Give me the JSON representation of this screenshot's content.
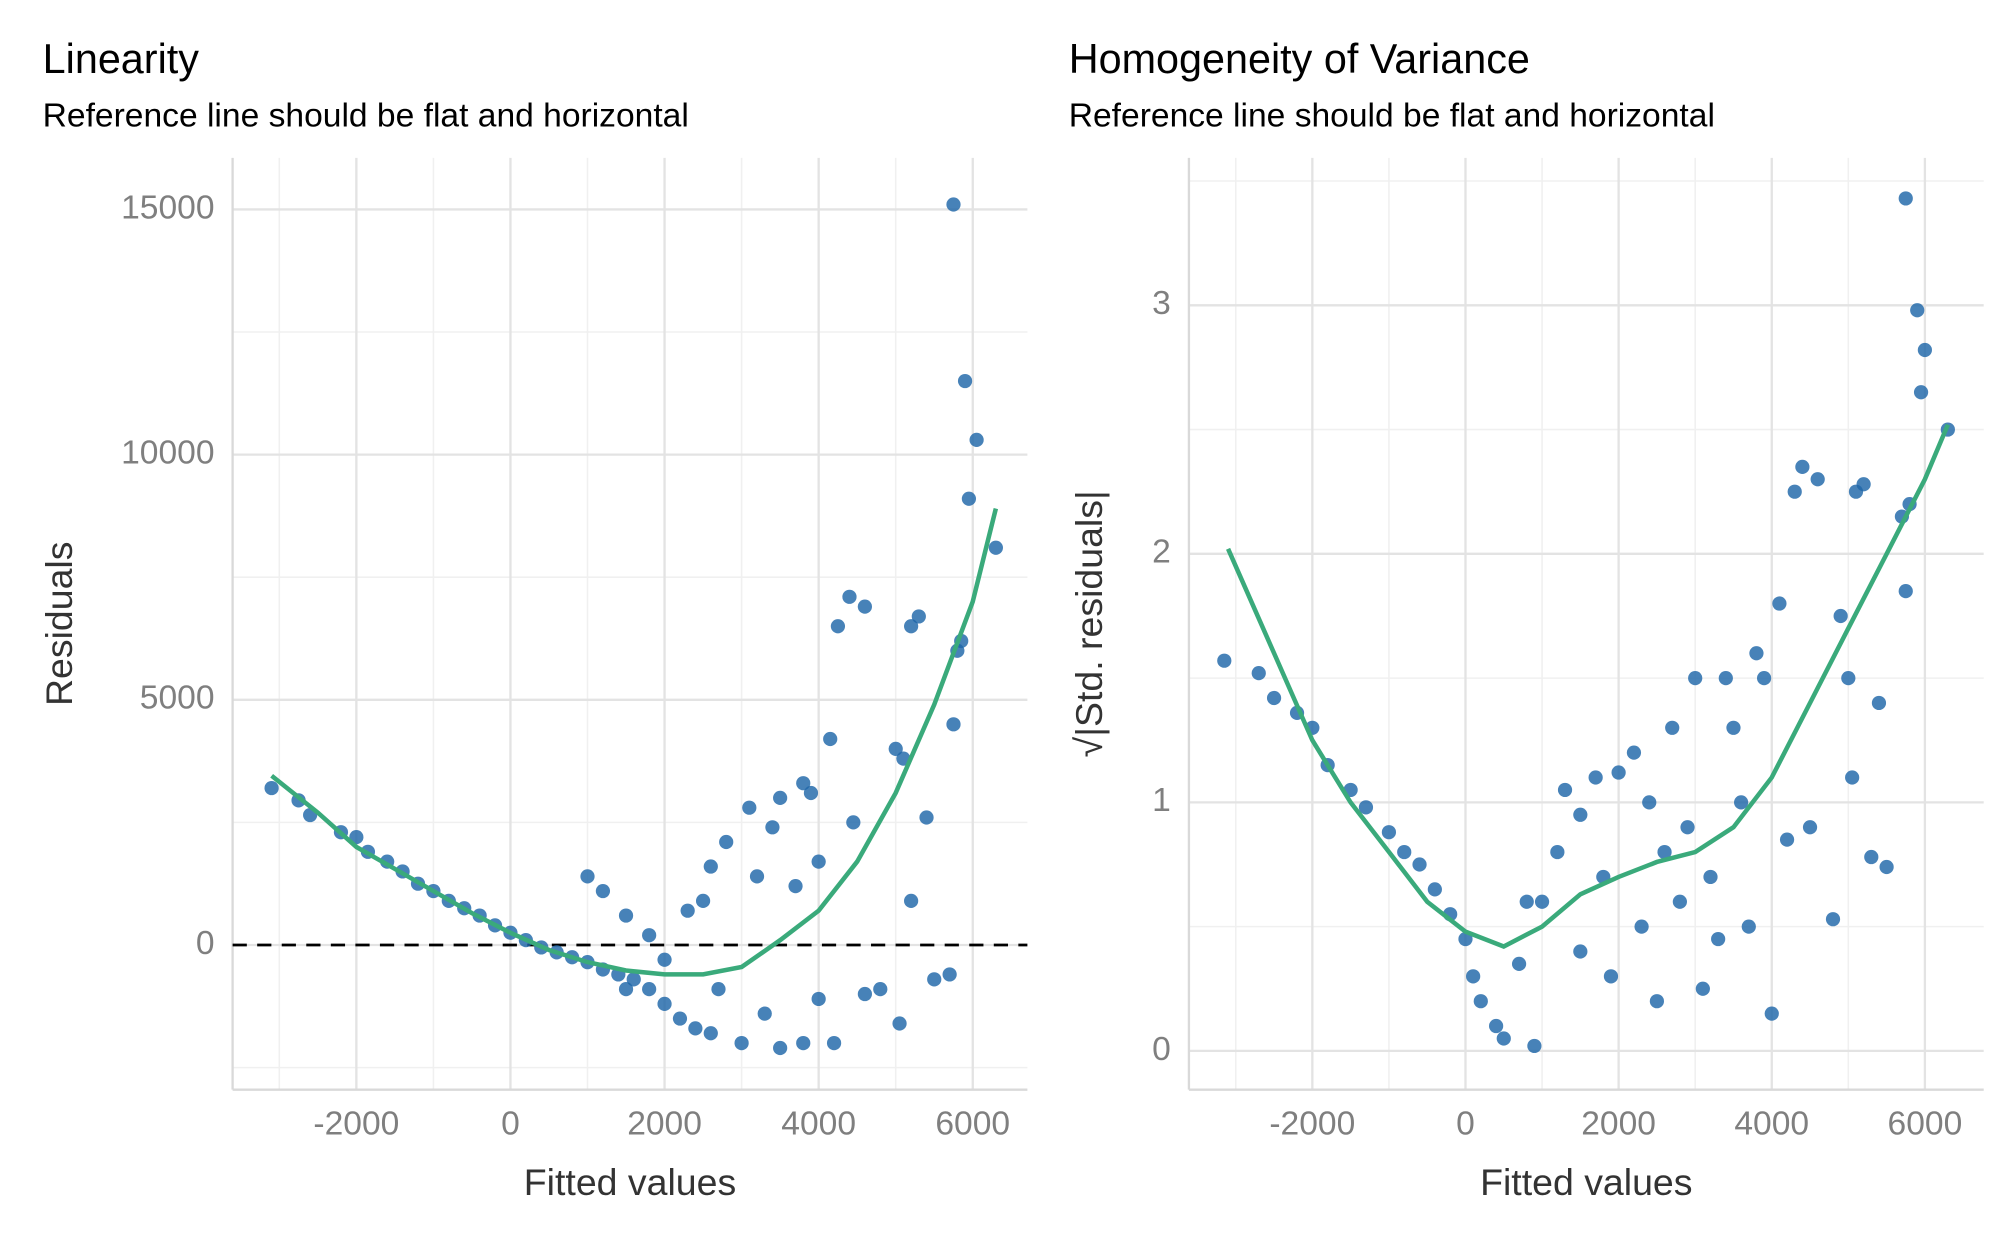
{
  "chart_data": [
    {
      "type": "scatter",
      "title": "Linearity",
      "subtitle": "Reference line should be flat and horizontal",
      "x_label": "Fitted values",
      "y_label": "Residuals",
      "xlim": [
        -3606,
        6709
      ],
      "ylim": [
        -2950,
        16050
      ],
      "xticks": [
        -2000,
        0,
        2000,
        4000,
        6000
      ],
      "yticks": [
        0,
        5000,
        10000,
        15000
      ],
      "minor_xticks": [
        -3000,
        -1000,
        1000,
        3000,
        5000
      ],
      "minor_yticks": [
        -2500,
        2500,
        7500,
        12500
      ],
      "grid": true,
      "hline": 0,
      "points": {
        "color": "#1f66a8",
        "x": [
          -3100,
          -2750,
          -2600,
          -2200,
          -2000,
          -1850,
          -1600,
          -1400,
          -1200,
          -1000,
          -800,
          -600,
          -400,
          -200,
          0,
          200,
          400,
          600,
          800,
          1000,
          1200,
          1400,
          1600,
          1800,
          2000,
          2200,
          2400,
          2600,
          3000,
          3500,
          3800,
          4200,
          1000,
          1200,
          1500,
          1800,
          2000,
          2300,
          2500,
          2600,
          2800,
          3100,
          3200,
          3400,
          3500,
          3700,
          3800,
          3900,
          4000,
          4150,
          4250,
          4400,
          4450,
          4600,
          4800,
          5000,
          5050,
          5100,
          5200,
          5300,
          5400,
          5500,
          5700,
          5750,
          5800,
          5850,
          5750,
          5900,
          5950,
          6050,
          6300,
          4600,
          5200,
          2700,
          1500,
          3300,
          4000
        ],
        "y": [
          3200,
          2950,
          2650,
          2300,
          2200,
          1900,
          1700,
          1500,
          1250,
          1100,
          900,
          750,
          600,
          400,
          250,
          100,
          -50,
          -150,
          -250,
          -350,
          -500,
          -600,
          -700,
          -900,
          -1200,
          -1500,
          -1700,
          -1800,
          -2000,
          -2100,
          -2000,
          -2000,
          1400,
          1100,
          600,
          200,
          -300,
          700,
          900,
          1600,
          2100,
          2800,
          1400,
          2400,
          3000,
          1200,
          3300,
          3100,
          1700,
          4200,
          6500,
          7100,
          2500,
          6900,
          -900,
          4000,
          -1600,
          3800,
          6500,
          6700,
          2600,
          -700,
          -600,
          4500,
          6000,
          6200,
          15100,
          11500,
          9100,
          10300,
          8100,
          -1000,
          900,
          -900,
          -900,
          -1400,
          -1100
        ]
      },
      "smooth": {
        "color": "#3aaa7b",
        "x": [
          -3100,
          -2500,
          -2000,
          -1500,
          -1000,
          -500,
          0,
          500,
          1000,
          1500,
          2000,
          2500,
          3000,
          3500,
          4000,
          4500,
          5000,
          5500,
          6000,
          6300
        ],
        "y": [
          3450,
          2700,
          2000,
          1550,
          1100,
          650,
          250,
          -100,
          -350,
          -520,
          -600,
          -600,
          -450,
          100,
          700,
          1700,
          3100,
          4900,
          7000,
          8900
        ]
      }
    },
    {
      "type": "scatter",
      "title": "Homogeneity of Variance",
      "subtitle": "Reference line should be flat and horizontal",
      "x_label": "Fitted values",
      "y_label": "√|Std. residuals|",
      "xlim": [
        -3612,
        6768
      ],
      "ylim": [
        -0.156,
        3.593
      ],
      "xticks": [
        -2000,
        0,
        2000,
        4000,
        6000
      ],
      "yticks": [
        0,
        1,
        2,
        3
      ],
      "minor_xticks": [
        -3000,
        -1000,
        1000,
        3000,
        5000
      ],
      "minor_yticks": [
        0.5,
        1.5,
        2.5,
        3.5
      ],
      "grid": true,
      "points": {
        "color": "#1f66a8",
        "x": [
          -3150,
          -2700,
          -2500,
          -2200,
          -2000,
          -1800,
          -1500,
          -1300,
          -1000,
          -800,
          -600,
          -400,
          -200,
          0,
          100,
          200,
          400,
          500,
          900,
          700,
          1000,
          1200,
          1300,
          1500,
          1700,
          1800,
          2000,
          2200,
          2300,
          2400,
          2500,
          2700,
          2900,
          3000,
          3100,
          3300,
          3400,
          3500,
          3700,
          3800,
          3900,
          4000,
          4100,
          4200,
          4300,
          4400,
          4600,
          4500,
          4800,
          4900,
          5000,
          5050,
          5100,
          5200,
          5300,
          5400,
          5500,
          5700,
          5750,
          5800,
          5750,
          5900,
          5950,
          6000,
          6300,
          3600,
          2800,
          1500,
          1900,
          2600,
          3200,
          800
        ],
        "y": [
          1.57,
          1.52,
          1.42,
          1.36,
          1.3,
          1.15,
          1.05,
          0.98,
          0.88,
          0.8,
          0.75,
          0.65,
          0.55,
          0.45,
          0.3,
          0.2,
          0.1,
          0.05,
          0.02,
          0.35,
          0.6,
          0.8,
          1.05,
          0.95,
          1.1,
          0.7,
          1.12,
          1.2,
          0.5,
          1.0,
          0.2,
          1.3,
          0.9,
          1.5,
          0.25,
          0.45,
          1.5,
          1.3,
          0.5,
          1.6,
          1.5,
          0.15,
          1.8,
          0.85,
          2.25,
          2.35,
          2.3,
          0.9,
          0.53,
          1.75,
          1.5,
          1.1,
          2.25,
          2.28,
          0.78,
          1.4,
          0.74,
          2.15,
          1.85,
          2.2,
          3.43,
          2.98,
          2.65,
          2.82,
          2.5,
          1.0,
          0.6,
          0.4,
          0.3,
          0.8,
          0.7,
          0.6
        ]
      },
      "smooth": {
        "color": "#3aaa7b",
        "x": [
          -3100,
          -2500,
          -2000,
          -1500,
          -1000,
          -500,
          0,
          500,
          1000,
          1500,
          2000,
          2500,
          3000,
          3500,
          4000,
          4500,
          5000,
          5500,
          6000,
          6300
        ],
        "y": [
          2.02,
          1.6,
          1.25,
          1.0,
          0.8,
          0.6,
          0.48,
          0.42,
          0.5,
          0.63,
          0.7,
          0.76,
          0.8,
          0.9,
          1.1,
          1.4,
          1.7,
          2.0,
          2.3,
          2.52
        ]
      }
    }
  ]
}
